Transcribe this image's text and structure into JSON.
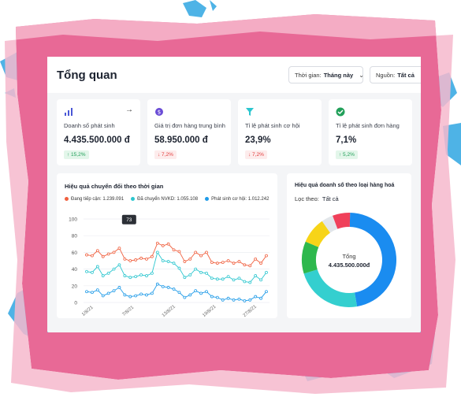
{
  "header": {
    "title": "Tổng quan",
    "time_filter": {
      "label": "Thời gian:",
      "value": "Tháng này"
    },
    "source_filter": {
      "label": "Nguồn:",
      "value": "Tất cả"
    }
  },
  "cards": [
    {
      "label": "Doanh số phát sinh",
      "value": "4.435.500.000 đ",
      "change": "↑ 15,2%",
      "trend": "up",
      "icon": "bar-chart-icon"
    },
    {
      "label": "Giá trị đơn hàng trung bình",
      "value": "58.950.000 đ",
      "change": "↓ 7,2%",
      "trend": "down",
      "icon": "money-bag-icon"
    },
    {
      "label": "Tỉ lệ phát sinh cơ hội",
      "value": "23,9%",
      "change": "↓ 7,2%",
      "trend": "down",
      "icon": "funnel-icon"
    },
    {
      "label": "Tỉ lệ phát sinh đơn hàng",
      "value": "7,1%",
      "change": "↑ 5,2%",
      "trend": "up",
      "icon": "check-circle-icon"
    }
  ],
  "line_panel": {
    "title": "Hiệu quả chuyển đổi theo thời gian",
    "tooltip": "73"
  },
  "donut_panel": {
    "title": "Hiệu quả doanh số theo loại hàng hoá",
    "filter_label": "Lọc theo:",
    "filter_value": "Tất cả",
    "center_label": "Tổng",
    "center_value": "4.435.500.000đ"
  },
  "colors": {
    "accent_blue": "#1a8cf0",
    "green": "#22a05a",
    "red": "#e23b3b",
    "series_red": "#f0603f",
    "series_teal": "#2cc6cf",
    "series_blue": "#1f9be8"
  },
  "chart_data": [
    {
      "type": "line",
      "title": "Hiệu quả chuyển đổi theo thời gian",
      "x_ticks": [
        "1/8/21",
        "7/8/21",
        "13/8/21",
        "19/8/21",
        "27/8/21"
      ],
      "ylim": [
        0,
        100
      ],
      "y_ticks": [
        0,
        20,
        40,
        60,
        80,
        100
      ],
      "grid": true,
      "legend_position": "top",
      "series": [
        {
          "name": "Đang tiếp cận: 1.239.091",
          "color": "#f0603f",
          "values": [
            57,
            56,
            62,
            55,
            58,
            60,
            65,
            52,
            50,
            51,
            53,
            52,
            55,
            71,
            68,
            70,
            63,
            61,
            49,
            52,
            60,
            56,
            60,
            48,
            47,
            48,
            50,
            47,
            49,
            45,
            44,
            52,
            47,
            56
          ]
        },
        {
          "name": "Đã chuyển NVKD: 1.055.108",
          "color": "#2cc6cf",
          "values": [
            37,
            36,
            43,
            32,
            35,
            40,
            45,
            32,
            30,
            31,
            33,
            32,
            35,
            60,
            50,
            49,
            47,
            41,
            30,
            33,
            40,
            36,
            35,
            29,
            28,
            28,
            31,
            27,
            29,
            25,
            24,
            32,
            27,
            36
          ]
        },
        {
          "name": "Phát sinh cơ hội: 1.012.242",
          "color": "#1f9be8",
          "values": [
            13,
            12,
            15,
            8,
            11,
            14,
            18,
            9,
            7,
            8,
            10,
            9,
            11,
            22,
            19,
            18,
            16,
            12,
            6,
            9,
            14,
            11,
            13,
            7,
            6,
            3,
            5,
            3,
            4,
            2,
            3,
            7,
            5,
            13
          ]
        }
      ]
    },
    {
      "type": "pie",
      "title": "Hiệu quả doanh số theo loại hàng hoá",
      "series": [
        {
          "color": "#1a8cf0",
          "value": 47
        },
        {
          "color": "#34cfcf",
          "value": 23
        },
        {
          "color": "#2db84d",
          "value": 11
        },
        {
          "color": "#f7d418",
          "value": 9
        },
        {
          "color": "#e2e6ea",
          "value": 4
        },
        {
          "color": "#f0405a",
          "value": 6
        }
      ]
    }
  ]
}
